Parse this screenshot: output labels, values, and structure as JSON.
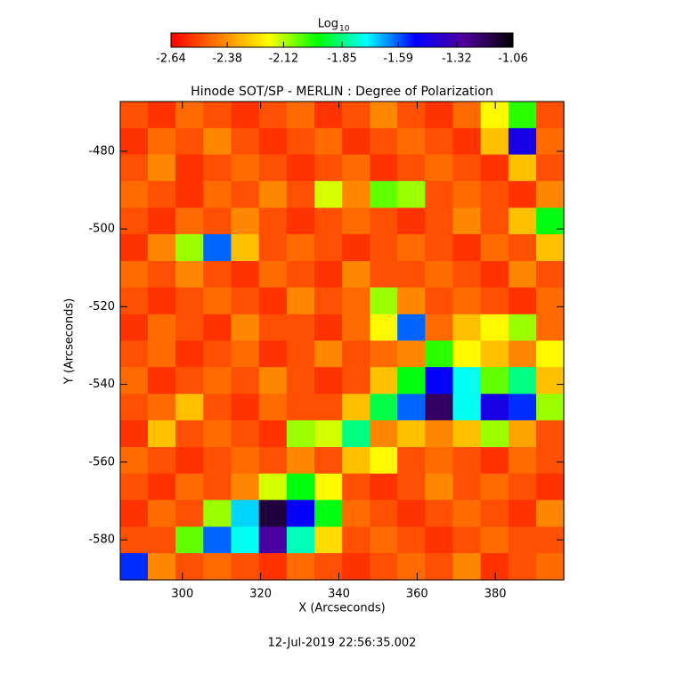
{
  "chart_data": {
    "type": "heatmap",
    "title": "Hinode SOT/SP - MERLIN : Degree of Polarization",
    "x_label": "X (Arcseconds)",
    "y_label": "Y (Arcseconds)",
    "footer": "12-Jul-2019 22:56:35.002",
    "colorbar_label": "Log",
    "colorbar_label_sub": "10",
    "colorbar_ticks": [
      -2.64,
      -2.38,
      -2.12,
      -1.85,
      -1.59,
      -1.32,
      -1.06
    ],
    "zlim": [
      -2.64,
      -1.06
    ],
    "colormap": [
      "#ff0000",
      "#ff7f00",
      "#ffff00",
      "#00ff00",
      "#00ffff",
      "#0000ff",
      "#50009c",
      "#000000"
    ],
    "xlim": [
      284.1,
      397.5
    ],
    "ylim": [
      -590.3,
      -467.2
    ],
    "xticks": [
      300,
      320,
      340,
      360,
      380
    ],
    "yticks": [
      -580,
      -560,
      -540,
      -520,
      -500,
      -480
    ],
    "x": [
      287.6,
      294.7,
      301.8,
      308.9,
      316.0,
      323.1,
      330.2,
      337.3,
      344.4,
      351.5,
      358.5,
      365.6,
      372.7,
      379.8,
      386.9,
      394.0
    ],
    "y": [
      -470.6,
      -477.5,
      -484.3,
      -491.1,
      -498.0,
      -504.8,
      -511.7,
      -518.5,
      -525.4,
      -532.2,
      -539.0,
      -545.9,
      -552.7,
      -559.6,
      -566.4,
      -573.2,
      -580.1,
      -586.9
    ],
    "z": [
      [
        -2.5,
        -2.55,
        -2.45,
        -2.5,
        -2.55,
        -2.5,
        -2.45,
        -2.55,
        -2.5,
        -2.4,
        -2.5,
        -2.55,
        -2.45,
        -2.2,
        -2.0,
        -2.5
      ],
      [
        -2.55,
        -2.45,
        -2.5,
        -2.4,
        -2.5,
        -2.55,
        -2.5,
        -2.45,
        -2.55,
        -2.5,
        -2.45,
        -2.5,
        -2.55,
        -2.3,
        -1.45,
        -2.45
      ],
      [
        -2.5,
        -2.4,
        -2.55,
        -2.5,
        -2.45,
        -2.5,
        -2.55,
        -2.5,
        -2.45,
        -2.55,
        -2.5,
        -2.45,
        -2.5,
        -2.55,
        -2.3,
        -2.5
      ],
      [
        -2.45,
        -2.5,
        -2.55,
        -2.45,
        -2.5,
        -2.4,
        -2.5,
        -2.15,
        -2.4,
        -2.05,
        -2.1,
        -2.5,
        -2.45,
        -2.5,
        -2.55,
        -2.4
      ],
      [
        -2.5,
        -2.55,
        -2.45,
        -2.5,
        -2.4,
        -2.5,
        -2.55,
        -2.5,
        -2.45,
        -2.5,
        -2.55,
        -2.5,
        -2.4,
        -2.5,
        -2.3,
        -1.95
      ],
      [
        -2.55,
        -2.4,
        -2.1,
        -1.6,
        -2.3,
        -2.5,
        -2.45,
        -2.5,
        -2.55,
        -2.5,
        -2.45,
        -2.5,
        -2.55,
        -2.45,
        -2.5,
        -2.3
      ],
      [
        -2.45,
        -2.5,
        -2.4,
        -2.5,
        -2.55,
        -2.45,
        -2.5,
        -2.55,
        -2.4,
        -2.5,
        -2.5,
        -2.45,
        -2.5,
        -2.55,
        -2.4,
        -2.5
      ],
      [
        -2.5,
        -2.55,
        -2.5,
        -2.45,
        -2.5,
        -2.55,
        -2.4,
        -2.5,
        -2.45,
        -2.1,
        -2.4,
        -2.5,
        -2.45,
        -2.5,
        -2.55,
        -2.45
      ],
      [
        -2.55,
        -2.45,
        -2.5,
        -2.55,
        -2.4,
        -2.5,
        -2.5,
        -2.55,
        -2.45,
        -2.2,
        -1.6,
        -2.45,
        -2.3,
        -2.2,
        -2.1,
        -2.45
      ],
      [
        -2.5,
        -2.45,
        -2.55,
        -2.5,
        -2.45,
        -2.55,
        -2.5,
        -2.4,
        -2.5,
        -2.45,
        -2.4,
        -2.0,
        -2.2,
        -2.3,
        -2.4,
        -2.2
      ],
      [
        -2.45,
        -2.55,
        -2.5,
        -2.45,
        -2.5,
        -2.4,
        -2.5,
        -2.55,
        -2.5,
        -2.3,
        -1.95,
        -1.5,
        -1.75,
        -2.05,
        -1.85,
        -2.3
      ],
      [
        -2.5,
        -2.45,
        -2.3,
        -2.5,
        -2.55,
        -2.45,
        -2.5,
        -2.5,
        -2.3,
        -1.9,
        -1.6,
        -1.2,
        -1.75,
        -1.45,
        -1.55,
        -2.1
      ],
      [
        -2.55,
        -2.3,
        -2.5,
        -2.45,
        -2.5,
        -2.55,
        -2.1,
        -2.15,
        -1.85,
        -2.4,
        -2.3,
        -2.4,
        -2.3,
        -2.1,
        -2.35,
        -2.5
      ],
      [
        -2.45,
        -2.5,
        -2.55,
        -2.5,
        -2.45,
        -2.5,
        -2.4,
        -2.5,
        -2.3,
        -2.2,
        -2.5,
        -2.45,
        -2.5,
        -2.55,
        -2.45,
        -2.5
      ],
      [
        -2.5,
        -2.55,
        -2.45,
        -2.5,
        -2.4,
        -2.15,
        -1.95,
        -2.2,
        -2.5,
        -2.55,
        -2.5,
        -2.4,
        -2.5,
        -2.45,
        -2.5,
        -2.55
      ],
      [
        -2.55,
        -2.45,
        -2.5,
        -2.1,
        -1.7,
        -1.15,
        -1.5,
        -1.95,
        -2.45,
        -2.5,
        -2.55,
        -2.5,
        -2.45,
        -2.5,
        -2.55,
        -2.4
      ],
      [
        -2.5,
        -2.5,
        -2.05,
        -1.6,
        -1.75,
        -1.3,
        -1.8,
        -2.25,
        -2.5,
        -2.45,
        -2.5,
        -2.55,
        -2.5,
        -2.45,
        -2.5,
        -2.5
      ],
      [
        -1.55,
        -2.4,
        -2.5,
        -2.45,
        -2.5,
        -2.55,
        -2.45,
        -2.5,
        -2.55,
        -2.5,
        -2.45,
        -2.5,
        -2.4,
        -2.55,
        -2.5,
        -2.45
      ]
    ]
  }
}
